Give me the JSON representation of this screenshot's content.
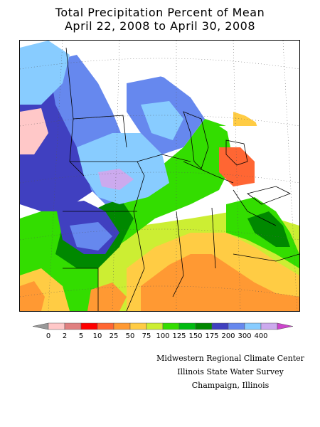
{
  "title": {
    "line1": "Total Precipitation Percent of Mean",
    "line2": "April 22, 2008 to April 30, 2008"
  },
  "legend": {
    "tick_labels": [
      "0",
      "2",
      "5",
      "10",
      "25",
      "50",
      "75",
      "100",
      "125",
      "150",
      "175",
      "200",
      "300",
      "400"
    ],
    "colors": [
      "#ffc8c8",
      "#e08080",
      "#ff0000",
      "#ff6633",
      "#ff9933",
      "#ffcc44",
      "#ccee33",
      "#33dd00",
      "#00bb11",
      "#008800",
      "#4040c0",
      "#6688ee",
      "#88ccff",
      "#ccaaee"
    ],
    "left_arrow_color": "#999999",
    "right_arrow_color": "#cc44cc"
  },
  "credits": {
    "line1": "Midwestern Regional Climate Center",
    "line2": "Illinois State Water Survey",
    "line3": "Champaign, Illinois"
  }
}
